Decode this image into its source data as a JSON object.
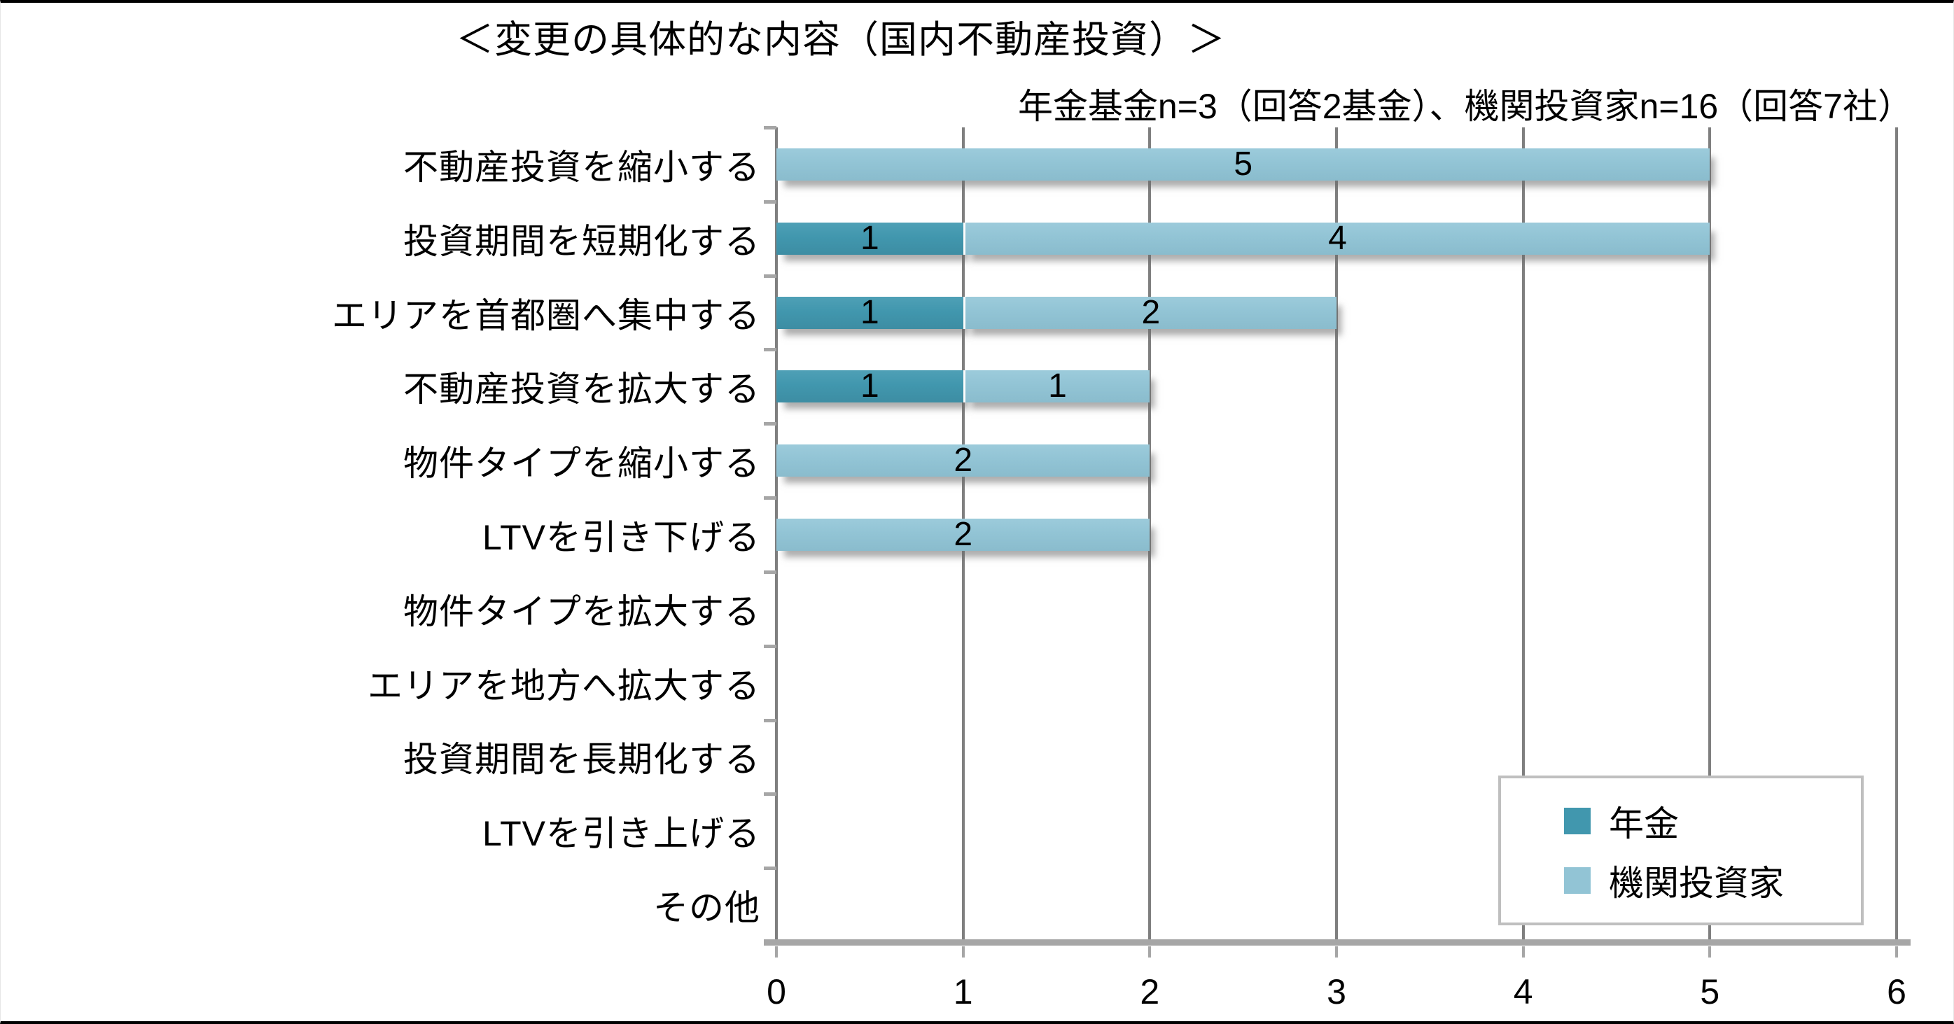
{
  "chart_data": {
    "type": "bar",
    "orientation": "horizontal",
    "stacked": true,
    "title": "＜変更の具体的な内容（国内不動産投資）＞",
    "subtitle": "年金基金n=3（回答2基金）、機関投資家n=16（回答7社）",
    "categories": [
      "不動産投資を縮小する",
      "投資期間を短期化する",
      "エリアを首都圏へ集中する",
      "不動産投資を拡大する",
      "物件タイプを縮小する",
      "LTVを引き下げる",
      "物件タイプを拡大する",
      "エリアを地方へ拡大する",
      "投資期間を長期化する",
      "LTVを引き上げる",
      "その他"
    ],
    "series": [
      {
        "name": "年金",
        "color": "#4197AE",
        "values": [
          0,
          1,
          1,
          1,
          0,
          0,
          0,
          0,
          0,
          0,
          0
        ]
      },
      {
        "name": "機関投資家",
        "color": "#92C4D5",
        "values": [
          5,
          4,
          2,
          1,
          2,
          2,
          0,
          0,
          0,
          0,
          0
        ]
      }
    ],
    "xlim": [
      0,
      6
    ],
    "xticks": [
      0,
      1,
      2,
      3,
      4,
      5,
      6
    ],
    "grid": true,
    "data_labels": true,
    "legend_position": "inside-bottom-right",
    "gridline_color": "#7F7F7F",
    "axis_line_color": "#A6A6A6",
    "background_color": "#FFFFFF",
    "text_color": "#000000"
  }
}
